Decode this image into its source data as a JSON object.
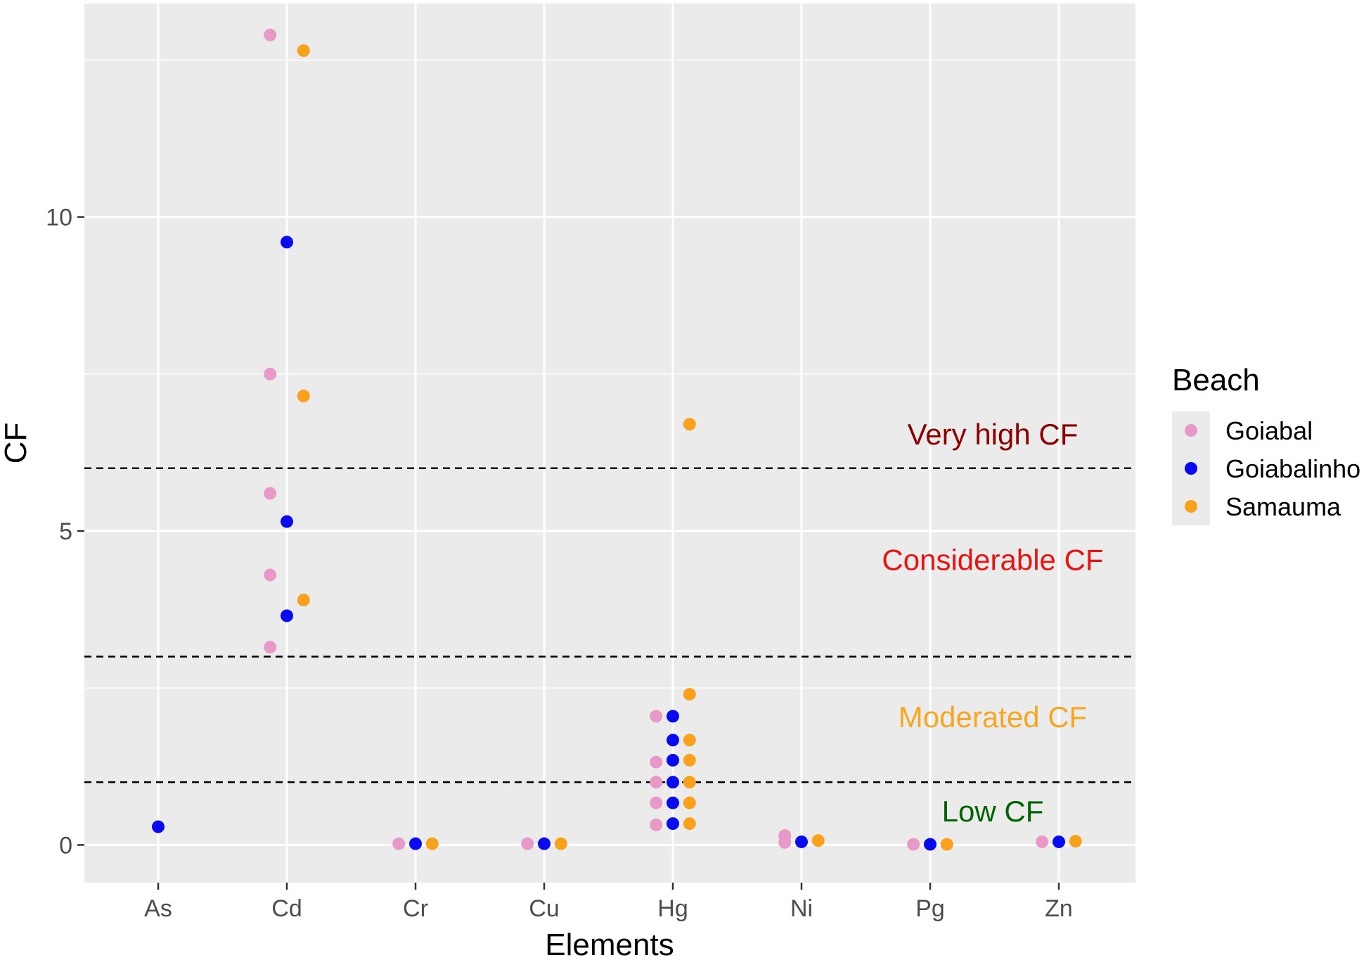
{
  "chart_data": {
    "type": "scatter",
    "xlabel": "Elements",
    "ylabel": "CF",
    "categories": [
      "As",
      "Cd",
      "Cr",
      "Cu",
      "Hg",
      "Ni",
      "Pg",
      "Zn"
    ],
    "ylim": [
      -0.6,
      13.4
    ],
    "yticks": [
      0,
      5,
      10
    ],
    "grid": true,
    "legend": {
      "title": "Beach",
      "position": "right",
      "entries": [
        {
          "name": "Goiabal",
          "color": "#e899c8"
        },
        {
          "name": "Goiabalinho",
          "color": "#0a0aee"
        },
        {
          "name": "Samauma",
          "color": "#f7a11c"
        }
      ]
    },
    "series": [
      {
        "name": "Goiabal",
        "color": "#e899c8",
        "offset": -0.13,
        "points": [
          {
            "x": "Cd",
            "y": 12.9
          },
          {
            "x": "Cd",
            "y": 7.5
          },
          {
            "x": "Cd",
            "y": 5.6
          },
          {
            "x": "Cd",
            "y": 4.3
          },
          {
            "x": "Cd",
            "y": 3.15
          },
          {
            "x": "Cr",
            "y": 0.02
          },
          {
            "x": "Cu",
            "y": 0.02
          },
          {
            "x": "Hg",
            "y": 2.05
          },
          {
            "x": "Hg",
            "y": 1.32
          },
          {
            "x": "Hg",
            "y": 1.0
          },
          {
            "x": "Hg",
            "y": 0.67
          },
          {
            "x": "Hg",
            "y": 0.32
          },
          {
            "x": "Ni",
            "y": 0.15
          },
          {
            "x": "Ni",
            "y": 0.04
          },
          {
            "x": "Pg",
            "y": 0.01
          },
          {
            "x": "Zn",
            "y": 0.05
          }
        ]
      },
      {
        "name": "Goiabalinho",
        "color": "#0a0aee",
        "offset": 0.0,
        "points": [
          {
            "x": "As",
            "y": 0.29
          },
          {
            "x": "Cd",
            "y": 9.6
          },
          {
            "x": "Cd",
            "y": 5.15
          },
          {
            "x": "Cd",
            "y": 3.65
          },
          {
            "x": "Cr",
            "y": 0.02
          },
          {
            "x": "Cu",
            "y": 0.02
          },
          {
            "x": "Hg",
            "y": 2.05
          },
          {
            "x": "Hg",
            "y": 1.67
          },
          {
            "x": "Hg",
            "y": 1.35
          },
          {
            "x": "Hg",
            "y": 1.0
          },
          {
            "x": "Hg",
            "y": 0.67
          },
          {
            "x": "Hg",
            "y": 0.34
          },
          {
            "x": "Ni",
            "y": 0.05
          },
          {
            "x": "Pg",
            "y": 0.01
          },
          {
            "x": "Zn",
            "y": 0.05
          }
        ]
      },
      {
        "name": "Samauma",
        "color": "#f7a11c",
        "offset": 0.13,
        "points": [
          {
            "x": "Cd",
            "y": 12.65
          },
          {
            "x": "Cd",
            "y": 7.15
          },
          {
            "x": "Cd",
            "y": 3.9
          },
          {
            "x": "Cr",
            "y": 0.02
          },
          {
            "x": "Cu",
            "y": 0.02
          },
          {
            "x": "Hg",
            "y": 6.7
          },
          {
            "x": "Hg",
            "y": 2.4
          },
          {
            "x": "Hg",
            "y": 1.67
          },
          {
            "x": "Hg",
            "y": 1.35
          },
          {
            "x": "Hg",
            "y": 1.0
          },
          {
            "x": "Hg",
            "y": 0.67
          },
          {
            "x": "Hg",
            "y": 0.34
          },
          {
            "x": "Ni",
            "y": 0.07
          },
          {
            "x": "Pg",
            "y": 0.01
          },
          {
            "x": "Zn",
            "y": 0.06
          }
        ]
      }
    ],
    "thresholds": [
      1,
      3,
      6
    ],
    "annotations": [
      {
        "label": "Very high CF",
        "y": 6.5,
        "color": "#8b0000"
      },
      {
        "label": "Considerable CF",
        "y": 4.5,
        "color": "#e81414"
      },
      {
        "label": "Moderated CF",
        "y": 2.0,
        "color": "#f5a623"
      },
      {
        "label": "Low CF",
        "y": 0.5,
        "color": "#006400"
      }
    ]
  }
}
